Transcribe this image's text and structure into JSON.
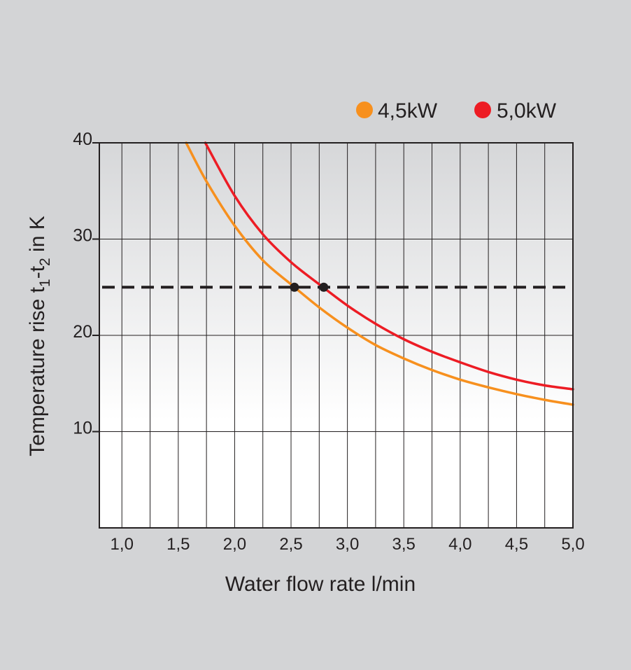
{
  "chart_data": {
    "type": "line",
    "xlabel": "Water flow rate l/min",
    "ylabel": {
      "prefix": "Temperature rise t",
      "sub1": "1",
      "mid": "-t",
      "sub2": "2",
      "suffix": " in K"
    },
    "xlim": [
      0.8,
      5.0
    ],
    "ylim": [
      0,
      40
    ],
    "x_ticks": [
      {
        "value": 1.0,
        "label": "1,0"
      },
      {
        "value": 1.5,
        "label": "1,5"
      },
      {
        "value": 2.0,
        "label": "2,0"
      },
      {
        "value": 2.5,
        "label": "2,5"
      },
      {
        "value": 3.0,
        "label": "3,0"
      },
      {
        "value": 3.5,
        "label": "3,5"
      },
      {
        "value": 4.0,
        "label": "4,0"
      },
      {
        "value": 4.5,
        "label": "4,5"
      },
      {
        "value": 5.0,
        "label": "5,0"
      }
    ],
    "y_ticks": [
      {
        "value": 10,
        "label": "10"
      },
      {
        "value": 20,
        "label": "20"
      },
      {
        "value": 30,
        "label": "30"
      },
      {
        "value": 40,
        "label": "40"
      }
    ],
    "x_gridlines": [
      1.0,
      1.25,
      1.5,
      1.75,
      2.0,
      2.25,
      2.5,
      2.75,
      3.0,
      3.25,
      3.5,
      3.75,
      4.0,
      4.25,
      4.5,
      4.75
    ],
    "y_gridlines": [
      10,
      20,
      30
    ],
    "grid": true,
    "legend": {
      "position": "top-right"
    },
    "series": [
      {
        "name": "4,5kW",
        "color": "#f7901e",
        "x": [
          1.57,
          1.75,
          2.0,
          2.25,
          2.5,
          2.75,
          3.0,
          3.25,
          3.5,
          3.75,
          4.0,
          4.25,
          4.5,
          4.75,
          5.0
        ],
        "y": [
          40.0,
          36.0,
          31.4,
          27.8,
          25.3,
          22.9,
          20.8,
          19.0,
          17.6,
          16.4,
          15.4,
          14.6,
          13.9,
          13.3,
          12.8
        ]
      },
      {
        "name": "5,0kW",
        "color": "#ed1c24",
        "x": [
          1.74,
          2.0,
          2.25,
          2.5,
          2.75,
          3.0,
          3.25,
          3.5,
          3.75,
          4.0,
          4.25,
          4.5,
          4.75,
          5.0
        ],
        "y": [
          40.0,
          34.5,
          30.5,
          27.6,
          25.3,
          23.1,
          21.2,
          19.6,
          18.3,
          17.2,
          16.2,
          15.4,
          14.8,
          14.4
        ]
      }
    ],
    "reference_line": {
      "y": 25,
      "style": "dashed",
      "color": "#231f20"
    },
    "markers": [
      {
        "x": 2.53,
        "y": 25,
        "color": "#231f20"
      },
      {
        "x": 2.79,
        "y": 25,
        "color": "#231f20"
      }
    ]
  }
}
